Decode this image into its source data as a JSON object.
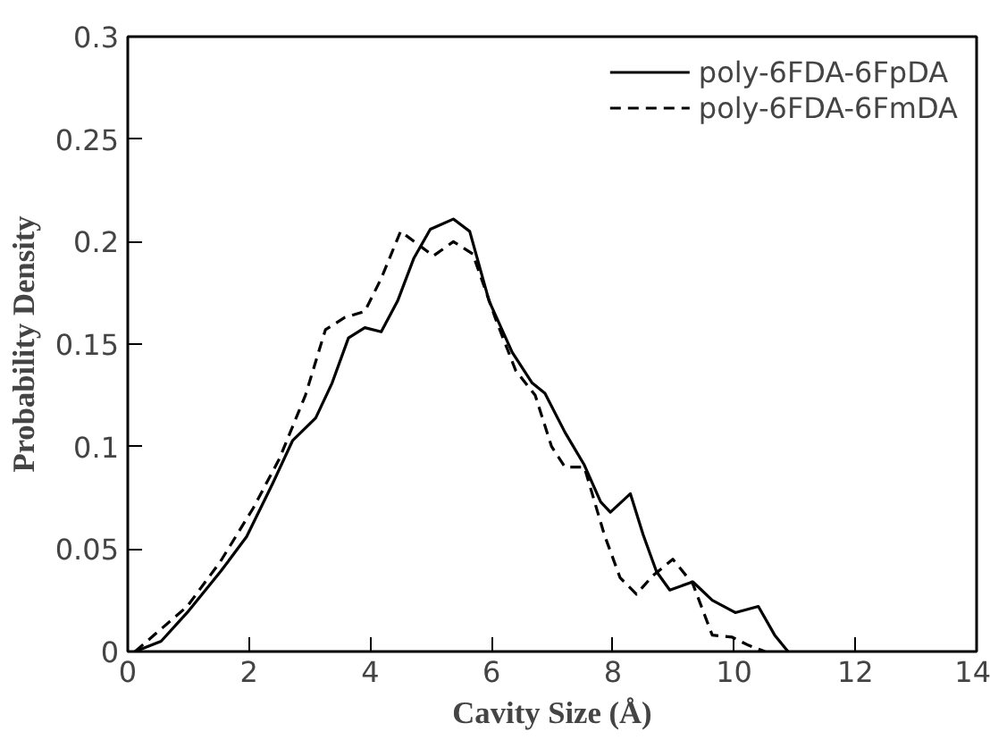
{
  "chart_data": {
    "type": "line",
    "xlabel": "Cavity Size (Å)",
    "ylabel": "Probability Density",
    "xlim": [
      0,
      14
    ],
    "ylim": [
      0,
      0.3
    ],
    "xticks": [
      0,
      2,
      4,
      6,
      8,
      10,
      12,
      14
    ],
    "yticks": [
      0,
      0.05,
      0.1,
      0.15,
      0.2,
      0.25,
      0.3
    ],
    "grid": false,
    "legend": "top right",
    "series": [
      {
        "name": "poly-6FDA-6FpDA",
        "color": "#000000",
        "line_style": "solid",
        "x": [
          0.12,
          0.55,
          0.98,
          1.53,
          1.96,
          2.39,
          2.72,
          3.1,
          3.37,
          3.64,
          3.91,
          4.18,
          4.45,
          4.72,
          4.99,
          5.37,
          5.64,
          5.96,
          6.34,
          6.67,
          6.88,
          7.21,
          7.53,
          7.8,
          7.96,
          8.29,
          8.5,
          8.72,
          8.94,
          9.32,
          9.64,
          10.02,
          10.4,
          10.67,
          10.89
        ],
        "values": [
          0,
          0.005,
          0.019,
          0.039,
          0.056,
          0.082,
          0.103,
          0.114,
          0.131,
          0.153,
          0.158,
          0.156,
          0.171,
          0.192,
          0.206,
          0.211,
          0.205,
          0.171,
          0.146,
          0.131,
          0.126,
          0.107,
          0.091,
          0.073,
          0.068,
          0.077,
          0.057,
          0.039,
          0.03,
          0.034,
          0.025,
          0.019,
          0.022,
          0.008,
          0
        ]
      },
      {
        "name": "poly-6FDA-6FmDA",
        "color": "#000000",
        "line_style": "dashed",
        "x": [
          0.12,
          0.98,
          1.53,
          2.07,
          2.5,
          2.93,
          3.26,
          3.58,
          3.91,
          4.18,
          4.5,
          4.77,
          5.04,
          5.37,
          5.69,
          6.07,
          6.4,
          6.72,
          6.99,
          7.21,
          7.53,
          7.86,
          8.12,
          8.39,
          8.66,
          8.99,
          9.32,
          9.64,
          9.97,
          10.24,
          10.51
        ],
        "values": [
          0,
          0.022,
          0.044,
          0.07,
          0.094,
          0.125,
          0.157,
          0.163,
          0.166,
          0.182,
          0.205,
          0.199,
          0.193,
          0.2,
          0.194,
          0.162,
          0.137,
          0.125,
          0.1,
          0.09,
          0.09,
          0.057,
          0.036,
          0.028,
          0.037,
          0.045,
          0.033,
          0.008,
          0.007,
          0.003,
          0
        ]
      }
    ]
  }
}
